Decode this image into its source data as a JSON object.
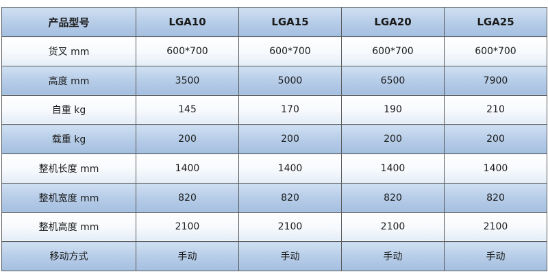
{
  "table": {
    "headers": [
      "产品型号",
      "LGA10",
      "LGA15",
      "LGA20",
      "LGA25"
    ],
    "rows": [
      {
        "label": "货叉 mm",
        "values": [
          "600*700",
          "600*700",
          "600*700",
          "600*700"
        ]
      },
      {
        "label": "高度 mm",
        "values": [
          "3500",
          "5000",
          "6500",
          "7900"
        ]
      },
      {
        "label": "自重 kg",
        "values": [
          "145",
          "170",
          "190",
          "210"
        ]
      },
      {
        "label": "载重 kg",
        "values": [
          "200",
          "200",
          "200",
          "200"
        ]
      },
      {
        "label": "整机长度 mm",
        "values": [
          "1400",
          "1400",
          "1400",
          "1400"
        ]
      },
      {
        "label": "整机宽度 mm",
        "values": [
          "820",
          "820",
          "820",
          "820"
        ]
      },
      {
        "label": "整机高度 mm",
        "values": [
          "2100",
          "2100",
          "2100",
          "2100"
        ]
      },
      {
        "label": "移动方式",
        "values": [
          "手动",
          "手动",
          "手动",
          "手动"
        ]
      }
    ]
  }
}
